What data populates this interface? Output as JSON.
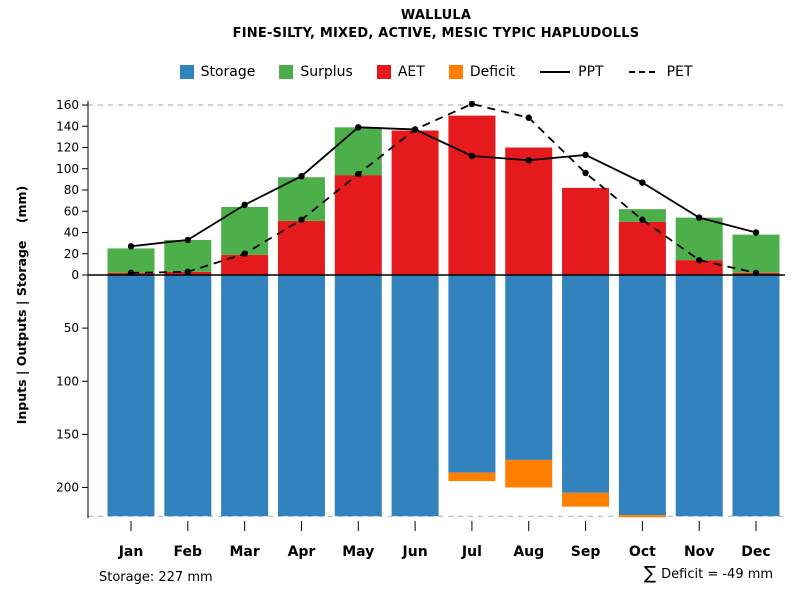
{
  "title": "WALLULA",
  "subtitle": "FINE-SILTY, MIXED, ACTIVE, MESIC TYPIC HAPLUDOLLS",
  "footer": {
    "storage_note": "Storage: 227 mm",
    "deficit_sigma": "∑",
    "deficit_text": "Deficit = -49 mm"
  },
  "legend": [
    {
      "label": "Storage",
      "type": "box",
      "color": "#3182BD"
    },
    {
      "label": "Surplus",
      "type": "box",
      "color": "#4DAF4A"
    },
    {
      "label": "AET",
      "type": "box",
      "color": "#E41A1C"
    },
    {
      "label": "Deficit",
      "type": "box",
      "color": "#FF7F00"
    },
    {
      "label": "PPT",
      "type": "line-solid",
      "color": "#000000"
    },
    {
      "label": "PET",
      "type": "line-dashed",
      "color": "#000000"
    }
  ],
  "chart_data": {
    "type": "bar",
    "title": "WALLULA",
    "subtitle": "FINE-SILTY, MIXED, ACTIVE, MESIC TYPIC HAPLUDOLLS",
    "categories": [
      "Jan",
      "Feb",
      "Mar",
      "Apr",
      "May",
      "Jun",
      "Jul",
      "Aug",
      "Sep",
      "Oct",
      "Nov",
      "Dec"
    ],
    "series": [
      {
        "name": "Storage",
        "kind": "bar-down",
        "color": "#3182BD",
        "values": [
          227,
          227,
          227,
          227,
          227,
          227,
          186,
          174,
          205,
          226,
          227,
          227
        ]
      },
      {
        "name": "AET",
        "kind": "bar-up-stack-bottom",
        "color": "#E41A1C",
        "values": [
          2,
          3,
          19,
          51,
          94,
          136,
          150,
          120,
          82,
          50,
          14,
          2
        ]
      },
      {
        "name": "Surplus",
        "kind": "bar-up-stack-top",
        "color": "#4DAF4A",
        "values": [
          23,
          30,
          45,
          41,
          45,
          0,
          0,
          0,
          0,
          12,
          40,
          36
        ]
      },
      {
        "name": "Deficit",
        "kind": "bar-below-storage",
        "color": "#FF7F00",
        "values": [
          0,
          0,
          0,
          0,
          0,
          0,
          8,
          26,
          13,
          2,
          0,
          0
        ]
      },
      {
        "name": "PPT",
        "kind": "line-solid",
        "color": "#000000",
        "values": [
          27,
          33,
          66,
          93,
          139,
          137,
          112,
          108,
          113,
          87,
          54,
          40
        ]
      },
      {
        "name": "PET",
        "kind": "line-dashed",
        "color": "#000000",
        "values": [
          2,
          3,
          20,
          52,
          95,
          137,
          161,
          148,
          96,
          52,
          14,
          2
        ]
      }
    ],
    "ylabel": "Inputs | Outputs | Storage    (mm)",
    "upper_axis": {
      "ticks": [
        0,
        20,
        40,
        60,
        80,
        100,
        120,
        140,
        160
      ],
      "max": 170
    },
    "lower_axis": {
      "ticks": [
        50,
        100,
        150,
        200
      ],
      "max": 232
    },
    "storage_max_mm": 227,
    "deficit_total_mm": -49,
    "grid": "dashed-horizontal",
    "legend_position": "top"
  }
}
